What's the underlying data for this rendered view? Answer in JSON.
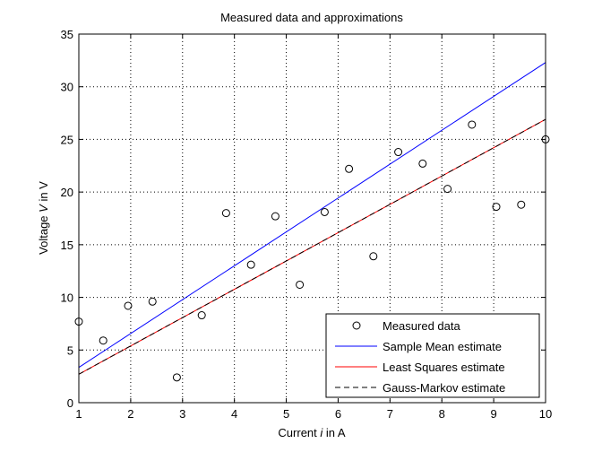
{
  "chart_data": {
    "type": "scatter",
    "title": "Measured data and approximations",
    "xlabel_prefix": "Current ",
    "xlabel_var": "i",
    "xlabel_suffix": " in A",
    "ylabel_prefix": "Voltage ",
    "ylabel_var": "V",
    "ylabel_suffix": " in V",
    "xlim": [
      1,
      10
    ],
    "ylim": [
      0,
      35
    ],
    "xticks": [
      1,
      2,
      3,
      4,
      5,
      6,
      7,
      8,
      9,
      10
    ],
    "yticks": [
      0,
      5,
      10,
      15,
      20,
      25,
      30,
      35
    ],
    "grid": true,
    "legend_position": "bottom-right",
    "series": [
      {
        "name": "Measured data",
        "kind": "markers",
        "marker": "circle",
        "color": "#000000",
        "x": [
          1.0,
          1.47,
          1.95,
          2.42,
          2.89,
          3.37,
          3.84,
          4.32,
          4.79,
          5.26,
          5.74,
          6.21,
          6.68,
          7.16,
          7.63,
          8.11,
          8.58,
          9.05,
          9.53,
          10.0
        ],
        "y": [
          7.7,
          5.9,
          9.2,
          9.6,
          2.4,
          8.3,
          18.0,
          13.1,
          17.7,
          11.2,
          18.1,
          22.2,
          13.9,
          23.8,
          22.7,
          20.3,
          26.4,
          18.6,
          18.8,
          25.0
        ]
      },
      {
        "name": "Sample Mean estimate",
        "kind": "line",
        "color": "#0000ff",
        "dash": "solid",
        "x": [
          1,
          10
        ],
        "y": [
          3.35,
          32.3
        ]
      },
      {
        "name": "Least Squares estimate",
        "kind": "line",
        "color": "#ff0000",
        "dash": "solid",
        "x": [
          1,
          10
        ],
        "y": [
          2.7,
          26.9
        ]
      },
      {
        "name": "Gauss-Markov estimate",
        "kind": "line",
        "color": "#000000",
        "dash": "dashed",
        "x": [
          1,
          10
        ],
        "y": [
          2.7,
          26.9
        ]
      }
    ]
  }
}
